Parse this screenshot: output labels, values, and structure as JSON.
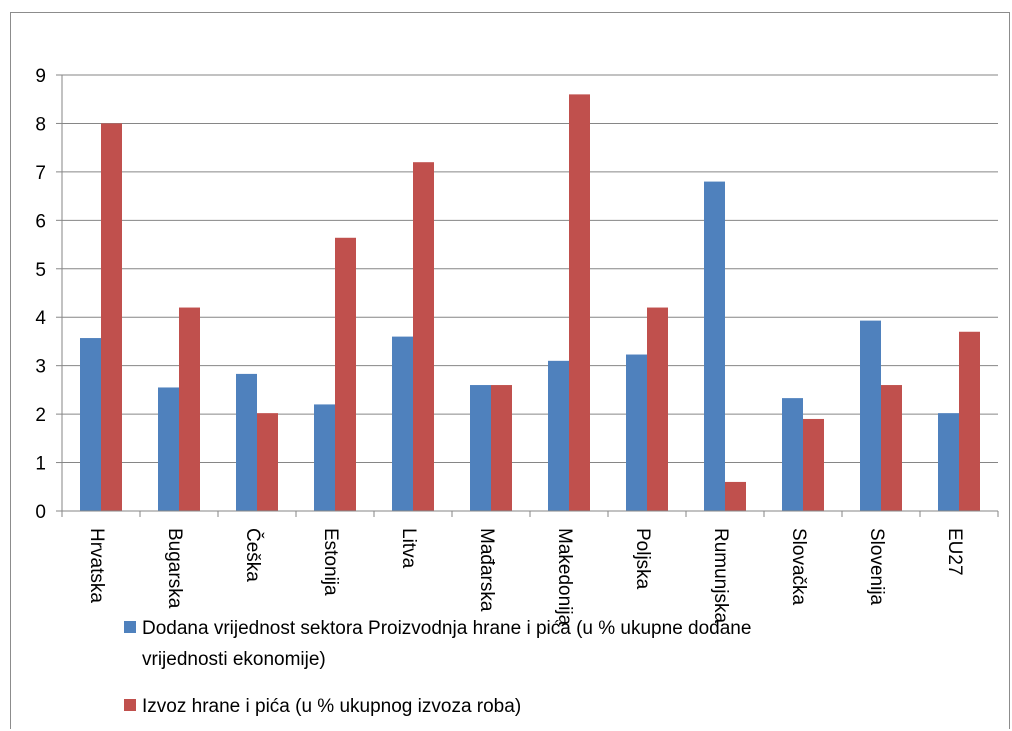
{
  "chart_data": {
    "type": "bar",
    "categories": [
      "Hrvatska",
      "Bugarska",
      "Češka",
      "Estonija",
      "Litva",
      "Mađarska",
      "Makedonija",
      "Poljska",
      "Rumunjska",
      "Slovačka",
      "Slovenija",
      "EU27"
    ],
    "series": [
      {
        "name": "Dodana vrijednost sektora Proizvodnja hrane i pića (u % ukupne dodane vrijednosti ekonomije)",
        "values": [
          3.57,
          2.55,
          2.83,
          2.2,
          3.6,
          2.6,
          3.1,
          3.23,
          6.8,
          2.33,
          3.93,
          2.02
        ],
        "color": "#4f81bd"
      },
      {
        "name": "Izvoz hrane i pića (u % ukupnog izvoza roba)",
        "values": [
          8.0,
          4.2,
          2.02,
          5.64,
          7.2,
          2.6,
          8.6,
          4.2,
          0.6,
          1.9,
          2.6,
          3.7
        ],
        "color": "#c0504d"
      }
    ],
    "yticks": [
      "0",
      "1",
      "2",
      "3",
      "4",
      "5",
      "6",
      "7",
      "8",
      "9"
    ],
    "ylim": [
      0,
      9
    ],
    "grid": true,
    "legend_position": "bottom",
    "legend": {
      "series_1_line1": "Dodana vrijednost sektora Proizvodnja hrane i pića (u % ukupne dodane",
      "series_1_line2": "vrijednosti ekonomije)",
      "series_2_line1": "Izvoz hrane i pića (u % ukupnog izvoza roba)"
    }
  }
}
